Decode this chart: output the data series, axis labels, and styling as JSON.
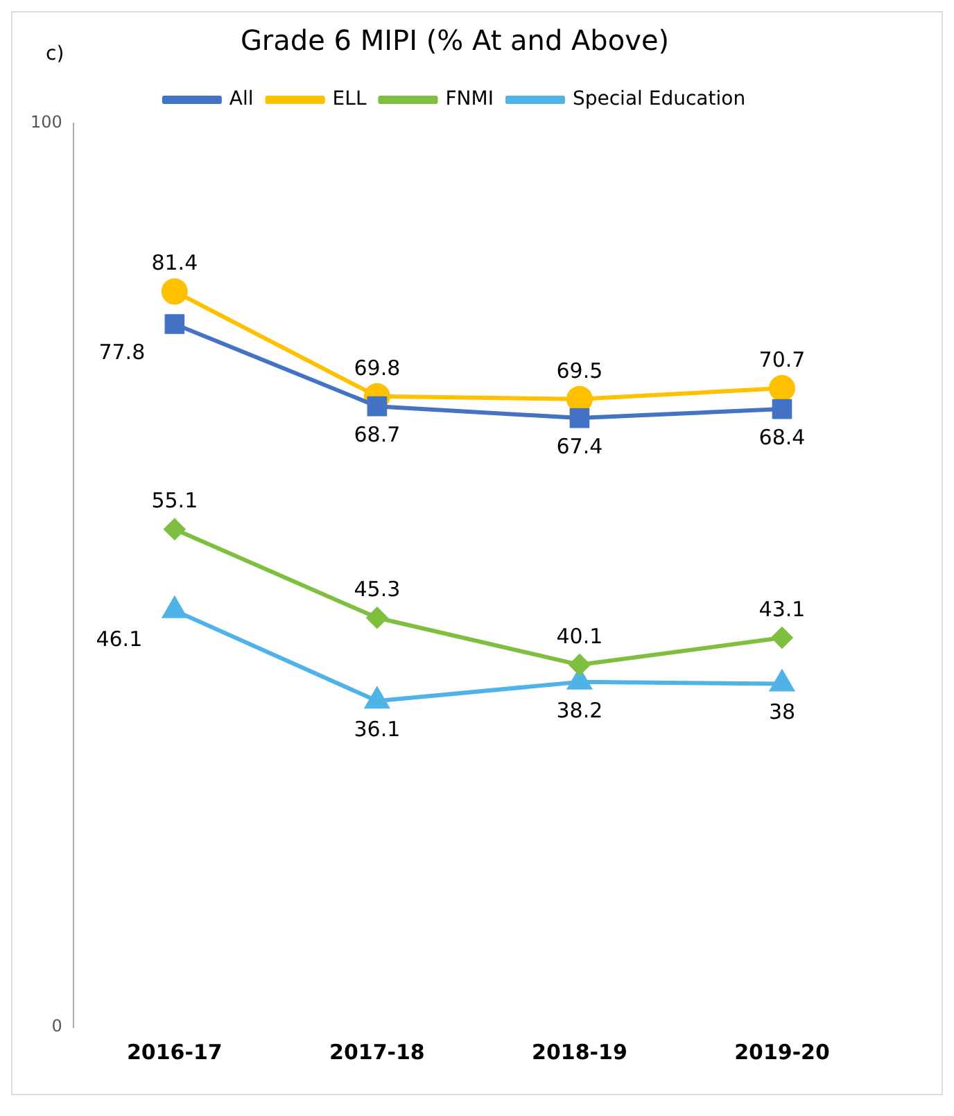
{
  "chart_data": {
    "type": "line",
    "title": "Grade 6 MIPI (% At and Above)",
    "annotations": [
      "c)"
    ],
    "categories": [
      "2016-17",
      "2017-18",
      "2018-19",
      "2019-20"
    ],
    "series": [
      {
        "name": "All",
        "color": "#4472c4",
        "values": [
          77.8,
          68.7,
          67.4,
          68.4
        ],
        "marker": "square"
      },
      {
        "name": "ELL",
        "color": "#ffc000",
        "values": [
          81.4,
          69.8,
          69.5,
          70.7
        ],
        "marker": "circle"
      },
      {
        "name": "FNMI",
        "color": "#7fbf3f",
        "values": [
          55.1,
          45.3,
          40.1,
          43.1
        ],
        "marker": "diamond"
      },
      {
        "name": "Special Education",
        "color": "#4fb3e8",
        "values": [
          46.1,
          36.1,
          38.2,
          38
        ],
        "marker": "triangle"
      }
    ],
    "ylim": [
      0,
      100
    ],
    "yticks": [
      0,
      100
    ],
    "grid": false,
    "legend": "top",
    "data_labels": true
  }
}
